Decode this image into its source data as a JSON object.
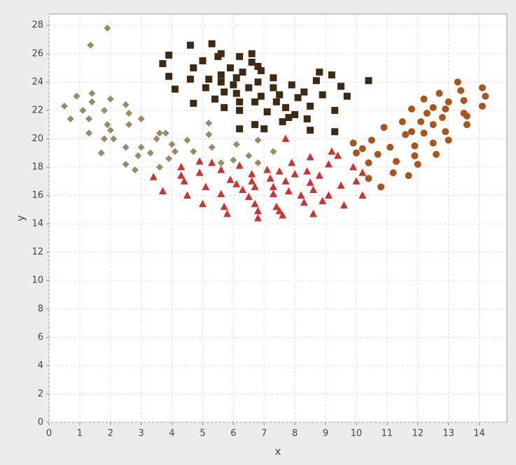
{
  "chart_data": {
    "type": "scatter",
    "xlabel": "x",
    "ylabel": "y",
    "xlim": [
      0,
      14.9
    ],
    "ylim": [
      0,
      28.8
    ],
    "xticks": [
      0,
      1,
      2,
      3,
      4,
      5,
      6,
      7,
      8,
      9,
      10,
      11,
      12,
      13,
      14
    ],
    "yticks": [
      0,
      2,
      4,
      6,
      8,
      10,
      12,
      14,
      16,
      18,
      20,
      22,
      24,
      26,
      28
    ],
    "grid": true,
    "series": [
      {
        "color": "#998a68",
        "marker": "diamond",
        "x": [
          0.5,
          0.7,
          0.9,
          1.1,
          1.3,
          1.3,
          1.4,
          1.4,
          1.35,
          1.9,
          1.7,
          1.8,
          1.8,
          1.9,
          2,
          2,
          2.1,
          2.5,
          2.6,
          2.6,
          2.5,
          2.5,
          2.8,
          2.9,
          3,
          3,
          3.3,
          3.5,
          3.6,
          3.6,
          3.8,
          3.9,
          4,
          4.1,
          4.5,
          4.7,
          5.2,
          5.2,
          5.3,
          5.6,
          6,
          6.1,
          6.5,
          6.8,
          6.8,
          7.3
        ],
        "values": [
          22.3,
          21.4,
          23,
          22,
          20.4,
          21.4,
          22.6,
          23.2,
          26.6,
          27.8,
          19,
          20,
          22,
          21,
          20.6,
          22.8,
          20,
          22.4,
          21.8,
          21,
          19.4,
          18.2,
          17.8,
          18.8,
          19.4,
          21.4,
          19,
          20,
          18,
          20.4,
          20.4,
          18.6,
          19.6,
          19.1,
          19.9,
          19.1,
          21.1,
          20.3,
          19.4,
          18.3,
          18.5,
          19.6,
          18.8,
          19.9,
          18.3,
          19.1
        ]
      },
      {
        "color": "#3d2a12",
        "marker": "square",
        "x": [
          3.7,
          3.9,
          3.9,
          4.1,
          4.6,
          4.6,
          4.7,
          4.7,
          5,
          5.1,
          5.3,
          5.2,
          5.4,
          5.5,
          5.6,
          5.6,
          5.6,
          5.7,
          5.7,
          5.9,
          6,
          6.1,
          6.1,
          6.2,
          6.2,
          6.2,
          6.2,
          6.3,
          6.5,
          6.6,
          6.6,
          6.7,
          6.7,
          6.8,
          6.8,
          6.9,
          6.9,
          7,
          7.1,
          7.3,
          7.3,
          7.4,
          7.5,
          7.6,
          7.7,
          7.8,
          7.9,
          8,
          8.1,
          8.3,
          8.4,
          8.5,
          8.5,
          8.7,
          8.8,
          8.9,
          9.2,
          9.3,
          9.3,
          9.5,
          9.7,
          10.4
        ],
        "values": [
          25.3,
          25.9,
          24.4,
          23.5,
          26.6,
          24.2,
          25,
          22.5,
          25.5,
          23.6,
          26.7,
          24.2,
          22.8,
          25.8,
          26,
          24,
          24.5,
          22.2,
          23.3,
          25,
          23.8,
          24.3,
          23.2,
          25.8,
          22.6,
          22,
          20.7,
          24.7,
          23.6,
          26,
          25.4,
          21,
          22.6,
          24,
          25.1,
          23,
          24.8,
          20.7,
          21.9,
          24.3,
          23.6,
          22.6,
          23.1,
          21.2,
          22.2,
          21.5,
          23.8,
          21.7,
          22.9,
          23.3,
          21.4,
          22.3,
          20.6,
          24.1,
          24.7,
          23.1,
          24.5,
          22,
          20.5,
          23.7,
          23,
          24.1
        ]
      },
      {
        "color": "#cc3333",
        "marker": "triangle",
        "x": [
          3.4,
          3.7,
          4.3,
          4.3,
          4.4,
          4.5,
          4.9,
          4.9,
          5,
          5.1,
          5.3,
          5.6,
          5.6,
          5.7,
          5.8,
          5.9,
          6.1,
          6.2,
          6.3,
          6.5,
          6.6,
          6.6,
          6.7,
          6.7,
          6.8,
          6.8,
          7.1,
          7.2,
          7.3,
          7.3,
          7.4,
          7.5,
          7.6,
          7.5,
          7.7,
          7.7,
          7.8,
          7.9,
          8,
          8.2,
          8.3,
          8.4,
          8.5,
          8.5,
          8.6,
          8.6,
          8.8,
          8.9,
          9.1,
          9.1,
          9.2,
          9.4,
          9.5,
          9.6,
          9.9,
          10,
          10.2,
          10.2
        ],
        "values": [
          17.3,
          16.3,
          18,
          17.4,
          17,
          16,
          18.4,
          17.6,
          15.4,
          16.6,
          18.3,
          17.8,
          16.1,
          15.2,
          14.7,
          17.1,
          16.8,
          18.1,
          16.4,
          15.9,
          17.5,
          17,
          16.6,
          15.4,
          14.9,
          14.4,
          17.8,
          17.2,
          16.6,
          16.1,
          15.2,
          14.9,
          14.6,
          17.7,
          20,
          17,
          16.3,
          18.3,
          17.5,
          16,
          15.5,
          17.7,
          16.9,
          18.7,
          14.7,
          16.4,
          17.4,
          15.6,
          16,
          18.2,
          19.1,
          18.8,
          16.7,
          15.3,
          18,
          17,
          16,
          17.6
        ]
      },
      {
        "color": "#a8561c",
        "marker": "circle",
        "x": [
          9.9,
          10,
          10.2,
          10.4,
          10.4,
          10.5,
          10.7,
          10.8,
          10.9,
          11.1,
          11.2,
          11.3,
          11.5,
          11.6,
          11.7,
          11.8,
          11.8,
          11.9,
          11.9,
          12,
          12.1,
          12.2,
          12.2,
          12.3,
          12.5,
          12.5,
          12.5,
          12.6,
          12.7,
          12.8,
          12.9,
          12.9,
          13,
          13,
          13.3,
          13.4,
          13.5,
          13.5,
          13.6,
          13.6,
          14.1,
          14.1,
          14.2
        ],
        "values": [
          19.7,
          19,
          19.3,
          18.3,
          17.2,
          19.9,
          18.9,
          16.6,
          20.8,
          19.4,
          17.6,
          18.4,
          21.2,
          20.3,
          17.4,
          22.1,
          20.5,
          19.5,
          18.8,
          18.2,
          21.2,
          22.8,
          20.4,
          21.8,
          22.2,
          21,
          19.7,
          18.9,
          23.2,
          21.5,
          22.1,
          20.5,
          22.6,
          19.9,
          24,
          23.4,
          22.7,
          21.8,
          21.6,
          21,
          22.3,
          23.6,
          23
        ]
      }
    ]
  }
}
